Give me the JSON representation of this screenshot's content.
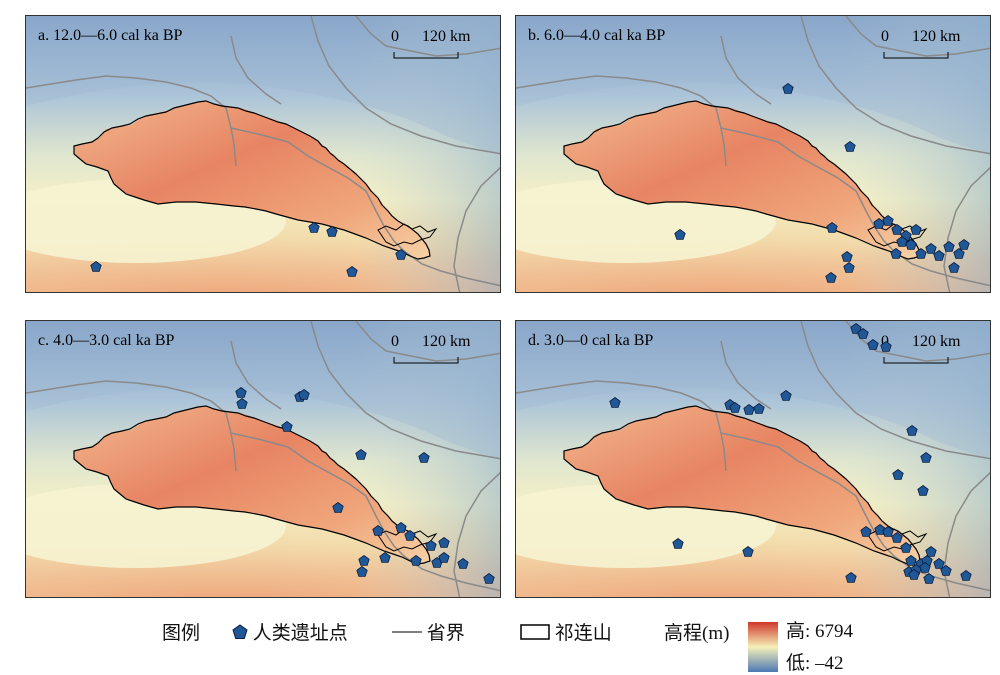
{
  "panels": [
    {
      "id": "a",
      "title": "a. 12.0—6.0 cal ka BP",
      "sites": [
        [
          288,
          212
        ],
        [
          306,
          216
        ],
        [
          375,
          239
        ],
        [
          326,
          256
        ],
        [
          70,
          251
        ]
      ]
    },
    {
      "id": "b",
      "title": "b. 6.0—4.0 cal ka BP",
      "sites": [
        [
          272,
          73
        ],
        [
          334,
          131
        ],
        [
          164,
          219
        ],
        [
          316,
          212
        ],
        [
          363,
          208
        ],
        [
          372,
          205
        ],
        [
          381,
          214
        ],
        [
          390,
          220
        ],
        [
          400,
          214
        ],
        [
          386,
          226
        ],
        [
          395,
          229
        ],
        [
          405,
          238
        ],
        [
          415,
          233
        ],
        [
          423,
          240
        ],
        [
          433,
          231
        ],
        [
          443,
          238
        ],
        [
          448,
          229
        ],
        [
          438,
          252
        ],
        [
          331,
          241
        ],
        [
          333,
          252
        ],
        [
          315,
          262
        ],
        [
          380,
          238
        ]
      ]
    },
    {
      "id": "c",
      "title": "c. 4.0—3.0 cal ka BP",
      "sites": [
        [
          215,
          72
        ],
        [
          216,
          83
        ],
        [
          274,
          76
        ],
        [
          278,
          74
        ],
        [
          261,
          106
        ],
        [
          335,
          134
        ],
        [
          398,
          137
        ],
        [
          312,
          187
        ],
        [
          352,
          210
        ],
        [
          375,
          207
        ],
        [
          384,
          215
        ],
        [
          405,
          225
        ],
        [
          418,
          222
        ],
        [
          390,
          240
        ],
        [
          411,
          242
        ],
        [
          418,
          237
        ],
        [
          437,
          243
        ],
        [
          463,
          258
        ],
        [
          338,
          240
        ],
        [
          336,
          251
        ],
        [
          359,
          237
        ]
      ]
    },
    {
      "id": "d",
      "title": "d. 3.0—0 cal ka BP",
      "sites": [
        [
          340,
          8
        ],
        [
          347,
          13
        ],
        [
          357,
          24
        ],
        [
          370,
          26
        ],
        [
          270,
          75
        ],
        [
          99,
          82
        ],
        [
          214,
          84
        ],
        [
          219,
          87
        ],
        [
          233,
          89
        ],
        [
          243,
          88
        ],
        [
          396,
          110
        ],
        [
          410,
          137
        ],
        [
          382,
          154
        ],
        [
          407,
          170
        ],
        [
          350,
          211
        ],
        [
          364,
          209
        ],
        [
          372,
          211
        ],
        [
          381,
          217
        ],
        [
          390,
          227
        ],
        [
          395,
          240
        ],
        [
          405,
          243
        ],
        [
          411,
          240
        ],
        [
          415,
          231
        ],
        [
          393,
          251
        ],
        [
          400,
          249
        ],
        [
          409,
          247
        ],
        [
          398,
          254
        ],
        [
          413,
          258
        ],
        [
          423,
          243
        ],
        [
          430,
          250
        ],
        [
          450,
          255
        ],
        [
          335,
          257
        ],
        [
          162,
          223
        ],
        [
          232,
          231
        ]
      ]
    }
  ],
  "scale_bar": {
    "start_label": "0",
    "end_label": "120 km"
  },
  "legend": {
    "title": "图例",
    "site_label": "人类遗址点",
    "boundary_label": "省界",
    "qilian_label": "祁连山",
    "elevation_label": "高程(m)",
    "elev_high_label": "高: 6794",
    "elev_low_label": "低: –42"
  },
  "colors": {
    "site_fill": "#1f5797",
    "site_stroke": "#0b1e3d",
    "elev_high": "#d0382a",
    "elev_mid": "#f5f0b8",
    "elev_low": "#4d78b5",
    "province_line": "#8a8a8a",
    "qilian_line": "#000000"
  }
}
